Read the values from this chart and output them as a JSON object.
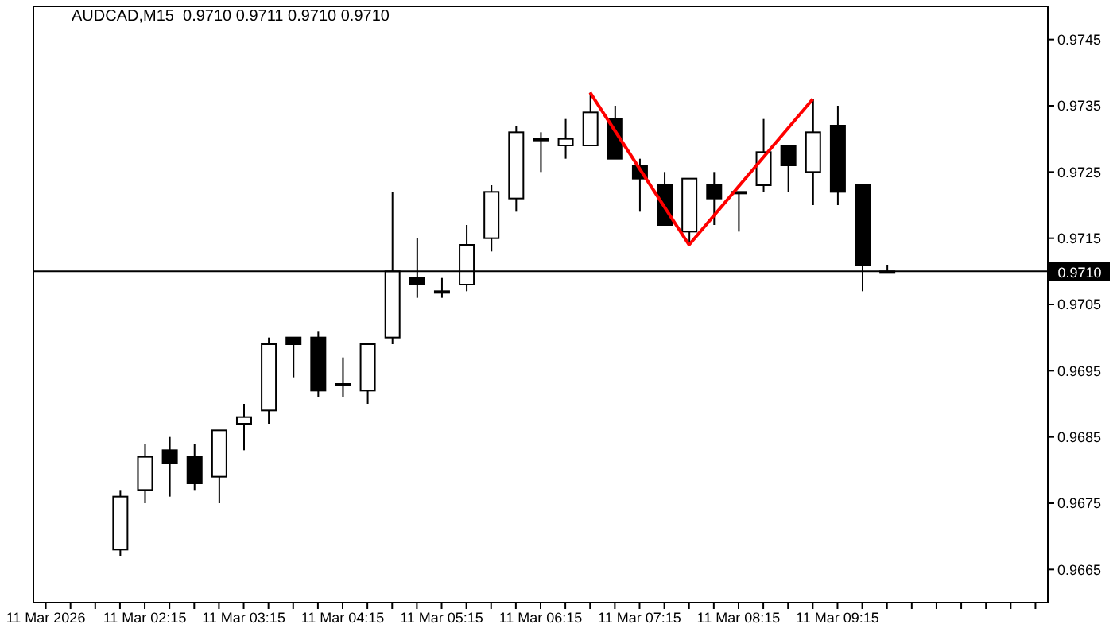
{
  "chart_data": {
    "type": "candlestick",
    "title": "AUDCAD,M15  0.9710 0.9711 0.9710 0.9710",
    "categories": [
      "11 Mar 2026",
      null,
      null,
      null,
      "11 Mar 02:15",
      null,
      null,
      null,
      "11 Mar 03:15",
      null,
      null,
      null,
      "11 Mar 04:15",
      null,
      null,
      null,
      "11 Mar 05:15",
      null,
      null,
      null,
      "11 Mar 06:15",
      null,
      null,
      null,
      "11 Mar 07:15",
      null,
      null,
      null,
      "11 Mar 08:15",
      null,
      null,
      null,
      "11 Mar 09:15",
      null,
      null,
      null,
      null,
      null,
      null,
      null,
      null
    ],
    "ohlc": [
      null,
      null,
      null,
      [
        0.9668,
        0.9677,
        0.9667,
        0.9676
      ],
      [
        0.9677,
        0.9684,
        0.9675,
        0.9682
      ],
      [
        0.9683,
        0.9685,
        0.9676,
        0.9681
      ],
      [
        0.9682,
        0.9684,
        0.9677,
        0.9678
      ],
      [
        0.9679,
        0.9686,
        0.9675,
        0.9686
      ],
      [
        0.9687,
        0.969,
        0.9683,
        0.9688
      ],
      [
        0.9689,
        0.97,
        0.9687,
        0.9699
      ],
      [
        0.97,
        0.97,
        0.9694,
        0.9699
      ],
      [
        0.97,
        0.9701,
        0.9691,
        0.9692
      ],
      [
        0.9693,
        0.9697,
        0.9691,
        0.9693
      ],
      [
        0.9692,
        0.9699,
        0.969,
        0.9699
      ],
      [
        0.97,
        0.9722,
        0.9699,
        0.971
      ],
      [
        0.9709,
        0.9715,
        0.9706,
        0.9708
      ],
      [
        0.9707,
        0.9709,
        0.9706,
        0.9707
      ],
      [
        0.9708,
        0.9717,
        0.9707,
        0.9714
      ],
      [
        0.9715,
        0.9723,
        0.9713,
        0.9722
      ],
      [
        0.9721,
        0.9732,
        0.9719,
        0.9731
      ],
      [
        0.973,
        0.9731,
        0.9725,
        0.973
      ],
      [
        0.9729,
        0.9733,
        0.9727,
        0.973
      ],
      [
        0.9729,
        0.9737,
        0.9729,
        0.9734
      ],
      [
        0.9733,
        0.9735,
        0.9727,
        0.9727
      ],
      [
        0.9726,
        0.9727,
        0.9719,
        0.9724
      ],
      [
        0.9723,
        0.9725,
        0.9717,
        0.9717
      ],
      [
        0.9716,
        0.9724,
        0.9714,
        0.9724
      ],
      [
        0.9723,
        0.9725,
        0.9717,
        0.9721
      ],
      [
        0.9722,
        0.9722,
        0.9716,
        0.9722
      ],
      [
        0.9723,
        0.9733,
        0.9722,
        0.9728
      ],
      [
        0.9729,
        0.9729,
        0.9722,
        0.9726
      ],
      [
        0.9725,
        0.9736,
        0.972,
        0.9731
      ],
      [
        0.9732,
        0.9735,
        0.972,
        0.9722
      ],
      [
        0.9723,
        0.9723,
        0.9707,
        0.9711
      ],
      [
        0.971,
        0.9711,
        0.971,
        0.971
      ],
      null,
      null,
      null,
      null,
      null,
      null
    ],
    "series": [
      {
        "type": "line",
        "color": "#ff0000",
        "values": [
          null,
          null,
          null,
          null,
          null,
          null,
          null,
          null,
          null,
          null,
          null,
          null,
          null,
          null,
          null,
          null,
          null,
          null,
          null,
          null,
          null,
          null,
          0.9737,
          null,
          null,
          null,
          0.9714,
          null,
          null,
          null,
          null,
          0.9736,
          null,
          null,
          null,
          null,
          null,
          null,
          null,
          null,
          null
        ]
      }
    ],
    "ylim": [
      0.966,
      0.975
    ],
    "yticks": [
      0.9665,
      0.9675,
      0.9685,
      0.9695,
      0.9705,
      0.9715,
      0.9725,
      0.9735,
      0.9745
    ],
    "ref_lines": [
      {
        "axis": "y",
        "value": 0.971,
        "label": "0.9710",
        "color": "#000000"
      }
    ]
  }
}
